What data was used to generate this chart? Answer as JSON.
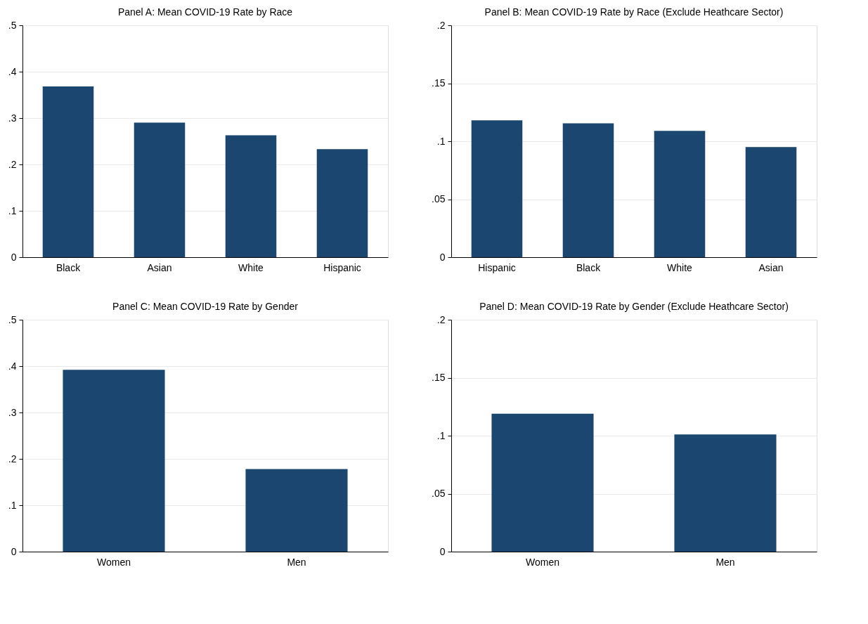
{
  "chart_data": [
    {
      "type": "bar",
      "title": "Panel A: Mean COVID-19 Rate by Race",
      "categories": [
        "Black",
        "Asian",
        "White",
        "Hispanic"
      ],
      "values": [
        0.368,
        0.29,
        0.263,
        0.233
      ],
      "color": "#1b466f",
      "ylim": [
        0,
        0.5
      ],
      "yticks": [
        0,
        {
          "value": 0.1,
          "label": ".1"
        },
        {
          "value": 0.2,
          "label": ".2"
        },
        {
          "value": 0.3,
          "label": ".3"
        },
        {
          "value": 0.4,
          "label": ".4"
        },
        {
          "value": 0.5,
          "label": ".5"
        }
      ],
      "grid": "y"
    },
    {
      "type": "bar",
      "title": "Panel B: Mean COVID-19 Rate by Race (Exclude Heathcare Sector)",
      "categories": [
        "Hispanic",
        "Black",
        "White",
        "Asian"
      ],
      "values": [
        0.118,
        0.1155,
        0.109,
        0.095
      ],
      "color": "#1b466f",
      "ylim": [
        0,
        0.2
      ],
      "yticks": [
        0,
        {
          "value": 0.05,
          "label": ".05"
        },
        {
          "value": 0.1,
          "label": ".1"
        },
        {
          "value": 0.15,
          "label": ".15"
        },
        {
          "value": 0.2,
          "label": ".2"
        }
      ],
      "grid": "y"
    },
    {
      "type": "bar",
      "title": "Panel C: Mean COVID-19 Rate by Gender",
      "categories": [
        "Women",
        "Men"
      ],
      "values": [
        0.392,
        0.178
      ],
      "color": "#1b466f",
      "ylim": [
        0,
        0.5
      ],
      "yticks": [
        0,
        {
          "value": 0.1,
          "label": ".1"
        },
        {
          "value": 0.2,
          "label": ".2"
        },
        {
          "value": 0.3,
          "label": ".3"
        },
        {
          "value": 0.4,
          "label": ".4"
        },
        {
          "value": 0.5,
          "label": ".5"
        }
      ],
      "grid": "y"
    },
    {
      "type": "bar",
      "title": "Panel D: Mean COVID-19 Rate by Gender (Exclude Heathcare Sector)",
      "categories": [
        "Women",
        "Men"
      ],
      "values": [
        0.119,
        0.101
      ],
      "color": "#1b466f",
      "ylim": [
        0,
        0.2
      ],
      "yticks": [
        0,
        {
          "value": 0.05,
          "label": ".05"
        },
        {
          "value": 0.1,
          "label": ".1"
        },
        {
          "value": 0.15,
          "label": ".15"
        },
        {
          "value": 0.2,
          "label": ".2"
        }
      ],
      "grid": "y"
    }
  ]
}
